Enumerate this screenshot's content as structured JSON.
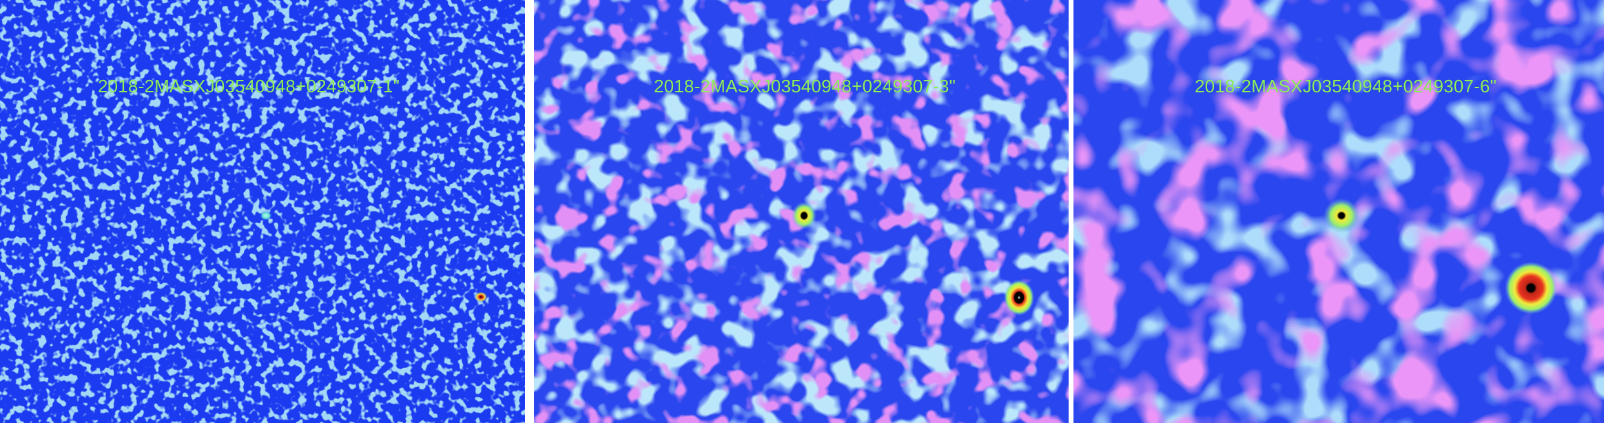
{
  "panels": [
    {
      "id": "panel-1",
      "label": "2018-2MASXJ03540948+0249307-1\""
    },
    {
      "id": "panel-2",
      "label": "2018-2MASXJ03540948+0249307-3\""
    },
    {
      "id": "panel-3",
      "label": "2018-2MASXJ03540948+0249307-6\""
    }
  ],
  "colors": {
    "background_blue": "#1b3bf0",
    "noise_cyan": "#5fb0ee",
    "noise_magenta": "#c248ea",
    "source_green": "#9cf06a",
    "source_yellow": "#f3e93a",
    "source_red": "#e8321e",
    "source_core": "#000000",
    "label_green": "#8ff05a"
  }
}
